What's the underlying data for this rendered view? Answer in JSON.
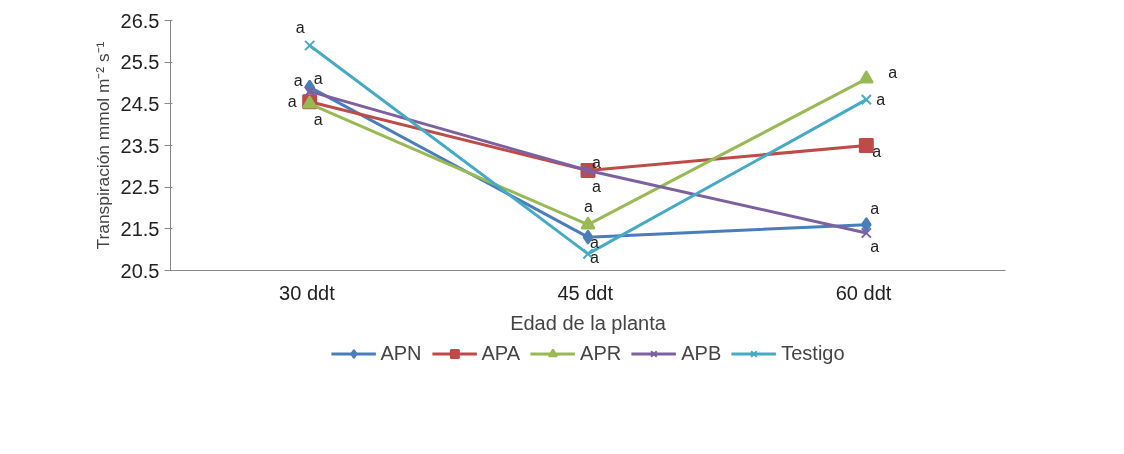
{
  "chart_data": {
    "type": "line",
    "xlabel": "Edad de la planta",
    "ylabel": "Transpiración mmol m⁻² s⁻¹",
    "categories": [
      "30  ddt",
      "45  ddt",
      "60  ddt"
    ],
    "ylim": [
      20.5,
      26.5
    ],
    "yticks": [
      20.5,
      21.5,
      22.5,
      23.5,
      24.5,
      25.5,
      26.5
    ],
    "grid": false,
    "legend": "bottom",
    "line_style": "solid",
    "series": [
      {
        "name": "APN",
        "color": "#4a7ebb",
        "marker": "diamond",
        "values": [
          24.9,
          21.3,
          21.6
        ]
      },
      {
        "name": "APA",
        "color": "#be4b48",
        "marker": "square",
        "values": [
          24.55,
          22.9,
          23.5
        ]
      },
      {
        "name": "APR",
        "color": "#98b954",
        "marker": "triangle",
        "values": [
          24.5,
          21.6,
          25.1
        ]
      },
      {
        "name": "APB",
        "color": "#7d60a0",
        "marker": "cross",
        "values": [
          24.8,
          22.9,
          21.4
        ]
      },
      {
        "name": "Testigo",
        "color": "#46aac5",
        "marker": "cross",
        "values": [
          25.9,
          20.9,
          24.6
        ]
      }
    ],
    "annotations": [
      {
        "text": "a",
        "x": "30  ddt",
        "y": 25.9
      },
      {
        "text": "a",
        "x": "30  ddt",
        "y": 24.9
      },
      {
        "text": "a",
        "x": "30  ddt",
        "y": 24.55
      },
      {
        "text": "a",
        "x": "30  ddt",
        "y": 24.5
      },
      {
        "text": "a",
        "x": "30  ddt",
        "y": 24.8
      },
      {
        "text": "a",
        "x": "45  ddt",
        "y": 22.9
      },
      {
        "text": "a",
        "x": "45  ddt",
        "y": 22.9
      },
      {
        "text": "a",
        "x": "45  ddt",
        "y": 21.6
      },
      {
        "text": "a",
        "x": "45  ddt",
        "y": 21.3
      },
      {
        "text": "a",
        "x": "45  ddt",
        "y": 20.9
      },
      {
        "text": "a",
        "x": "60  ddt",
        "y": 25.1
      },
      {
        "text": "a",
        "x": "60  ddt",
        "y": 24.6
      },
      {
        "text": "a",
        "x": "60  ddt",
        "y": 23.5
      },
      {
        "text": "a",
        "x": "60  ddt",
        "y": 21.6
      },
      {
        "text": "a",
        "x": "60  ddt",
        "y": 21.4
      }
    ]
  }
}
